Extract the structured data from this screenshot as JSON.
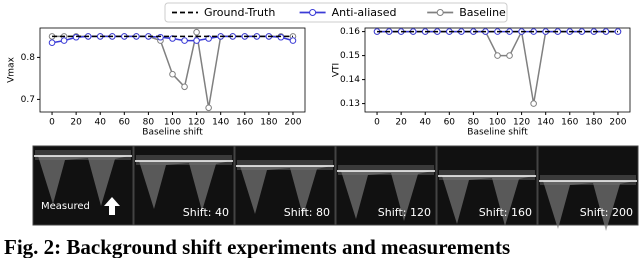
{
  "chart_data": [
    {
      "type": "line",
      "y_label": "Vmax",
      "x_label": "Baseline shift",
      "x": [
        0,
        10,
        20,
        30,
        40,
        50,
        60,
        70,
        80,
        90,
        100,
        110,
        120,
        130,
        140,
        150,
        160,
        170,
        180,
        190,
        200
      ],
      "series": [
        {
          "name": "Ground-Truth",
          "color": "#000000",
          "dash": true,
          "marker": false,
          "values": [
            0.85,
            0.85,
            0.85,
            0.85,
            0.85,
            0.85,
            0.85,
            0.85,
            0.85,
            0.85,
            0.85,
            0.85,
            0.85,
            0.85,
            0.85,
            0.85,
            0.85,
            0.85,
            0.85,
            0.85,
            0.85
          ]
        },
        {
          "name": "Anti-aliased",
          "color": "#3b3bd6",
          "dash": false,
          "marker": true,
          "values": [
            0.835,
            0.84,
            0.848,
            0.85,
            0.85,
            0.85,
            0.85,
            0.85,
            0.85,
            0.848,
            0.845,
            0.84,
            0.84,
            0.845,
            0.85,
            0.85,
            0.85,
            0.85,
            0.85,
            0.848,
            0.84
          ]
        },
        {
          "name": "Baseline",
          "color": "#808080",
          "dash": false,
          "marker": true,
          "values": [
            0.85,
            0.85,
            0.85,
            0.85,
            0.85,
            0.85,
            0.85,
            0.85,
            0.85,
            0.84,
            0.76,
            0.73,
            0.86,
            0.68,
            0.85,
            0.85,
            0.85,
            0.85,
            0.85,
            0.85,
            0.85
          ]
        }
      ],
      "xlim": [
        -10,
        210
      ],
      "xticks": [
        0,
        20,
        40,
        60,
        80,
        100,
        120,
        140,
        160,
        180,
        200
      ],
      "ylim": [
        0.67,
        0.87
      ],
      "yticks": [
        0.7,
        0.8
      ]
    },
    {
      "type": "line",
      "y_label": "VTI",
      "x_label": "Baseline shift",
      "x": [
        0,
        10,
        20,
        30,
        40,
        50,
        60,
        70,
        80,
        90,
        100,
        110,
        120,
        130,
        140,
        150,
        160,
        170,
        180,
        190,
        200
      ],
      "series": [
        {
          "name": "Ground-Truth",
          "color": "#000000",
          "dash": true,
          "marker": false,
          "values": [
            0.16,
            0.16,
            0.16,
            0.16,
            0.16,
            0.16,
            0.16,
            0.16,
            0.16,
            0.16,
            0.16,
            0.16,
            0.16,
            0.16,
            0.16,
            0.16,
            0.16,
            0.16,
            0.16,
            0.16,
            0.16
          ]
        },
        {
          "name": "Anti-aliased",
          "color": "#3b3bd6",
          "dash": false,
          "marker": true,
          "values": [
            0.16,
            0.16,
            0.16,
            0.16,
            0.16,
            0.16,
            0.16,
            0.16,
            0.16,
            0.16,
            0.16,
            0.16,
            0.16,
            0.16,
            0.16,
            0.16,
            0.16,
            0.16,
            0.16,
            0.16,
            0.16
          ]
        },
        {
          "name": "Baseline",
          "color": "#808080",
          "dash": false,
          "marker": true,
          "values": [
            0.16,
            0.16,
            0.16,
            0.16,
            0.16,
            0.16,
            0.16,
            0.16,
            0.16,
            0.16,
            0.15,
            0.15,
            0.16,
            0.13,
            0.16,
            0.16,
            0.16,
            0.16,
            0.16,
            0.16,
            0.16
          ]
        }
      ],
      "xlim": [
        -10,
        210
      ],
      "xticks": [
        0,
        20,
        40,
        60,
        80,
        100,
        120,
        140,
        160,
        180,
        200
      ],
      "ylim": [
        0.1265,
        0.1615
      ],
      "yticks": [
        0.13,
        0.14,
        0.15,
        0.16
      ]
    }
  ],
  "images": [
    "Measured",
    "Shift: 40",
    "Shift: 80",
    "Shift: 120",
    "Shift: 160",
    "Shift: 200"
  ],
  "caption": "Fig. 2: Background shift experiments and measurements"
}
